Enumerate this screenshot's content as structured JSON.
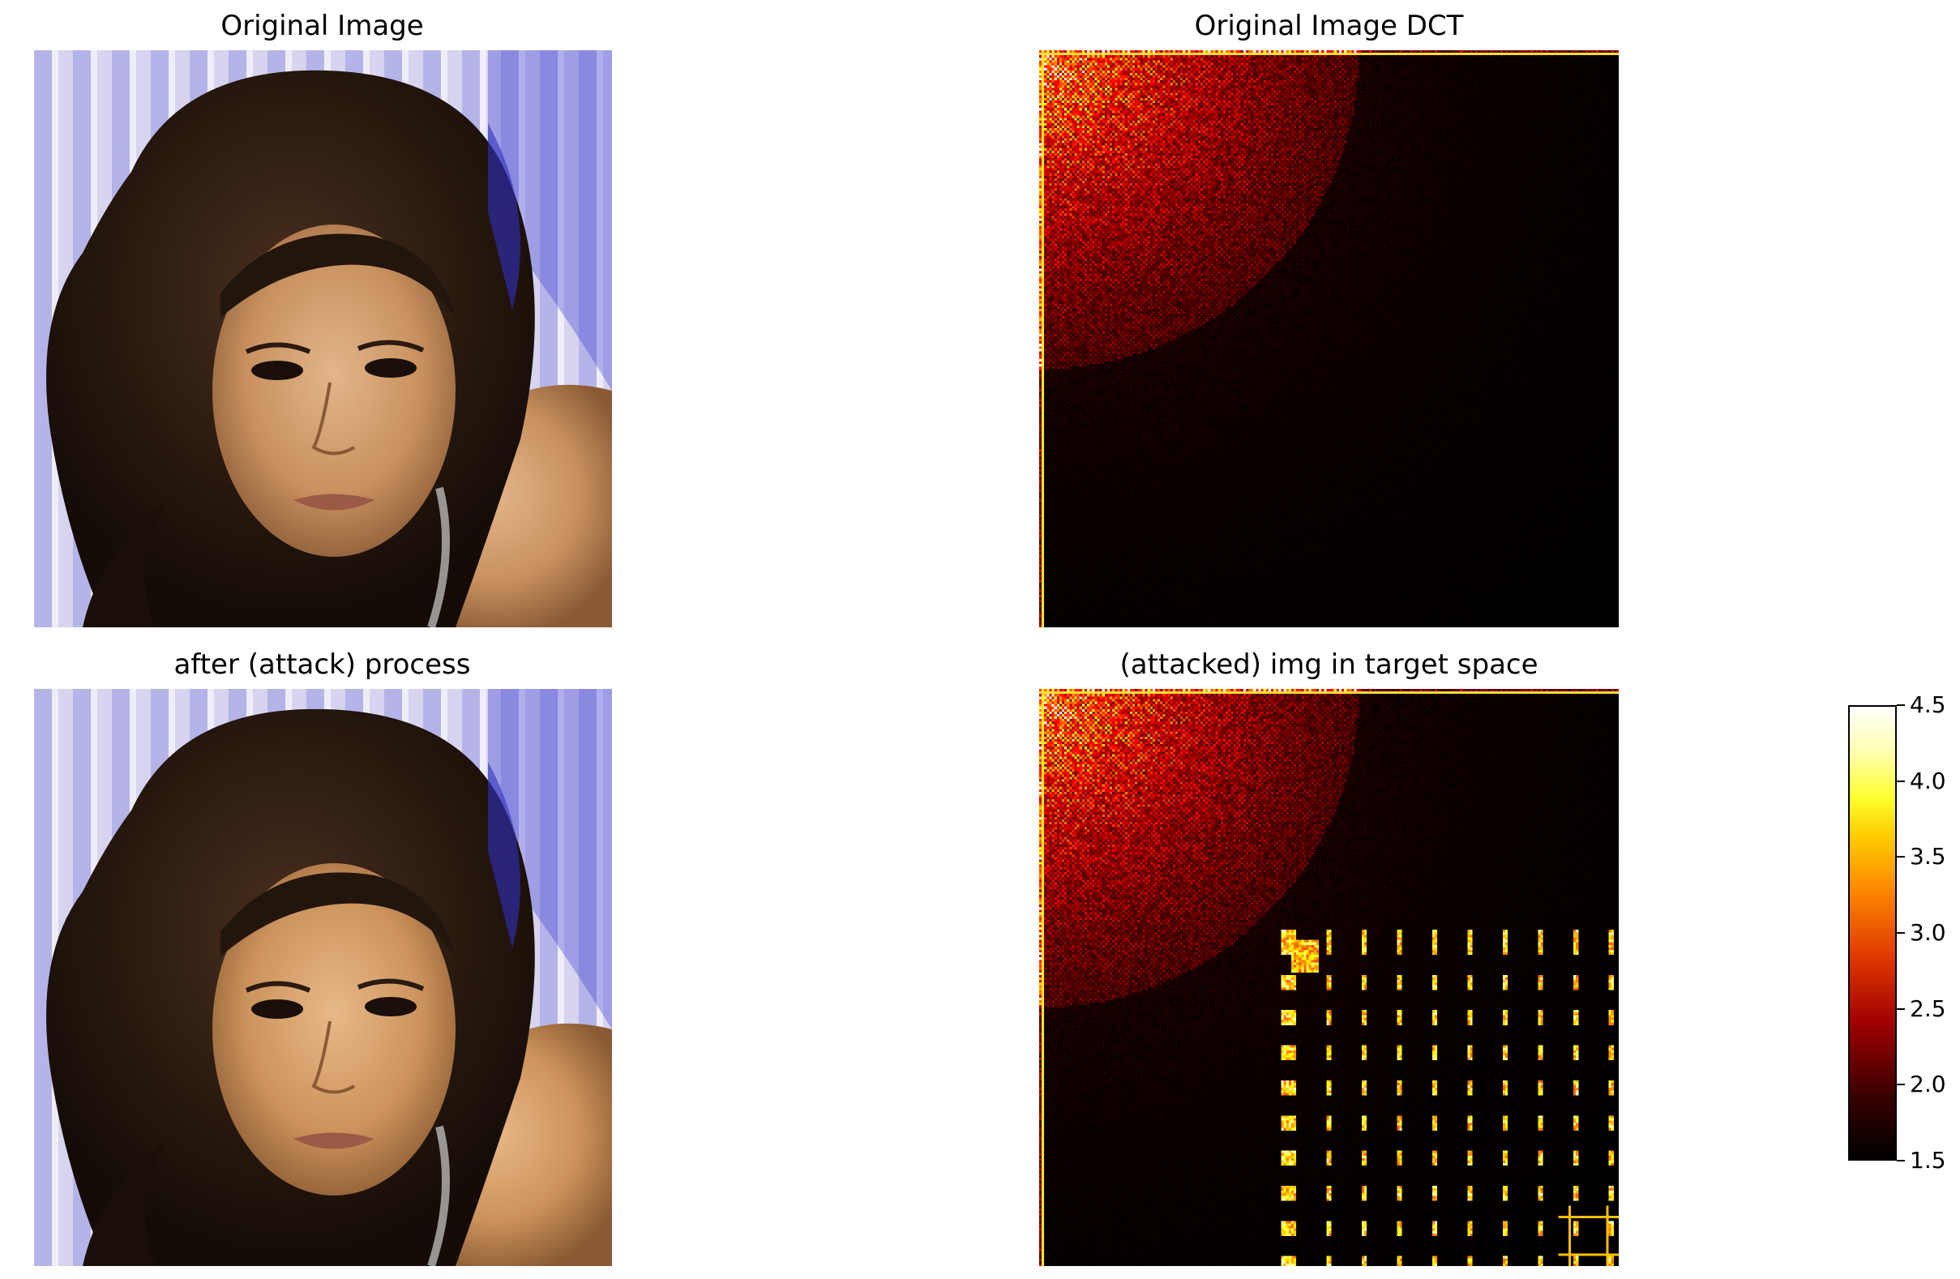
{
  "panels": {
    "original": {
      "title": "Original Image"
    },
    "original_dct": {
      "title": "Original Image DCT"
    },
    "after": {
      "title": "after (attack) process"
    },
    "attacked": {
      "title": "(attacked) img in target space"
    }
  },
  "colorbar": {
    "min": 1.5,
    "max": 4.5,
    "ticks": [
      "1.5",
      "2.0",
      "2.5",
      "3.0",
      "3.5",
      "4.0",
      "4.5"
    ],
    "colormap": "hot"
  },
  "colors": {
    "background": "#ffffff",
    "hair": "#2a1a10",
    "skin": "#c89568",
    "backdrop": "#c8c8f0"
  }
}
